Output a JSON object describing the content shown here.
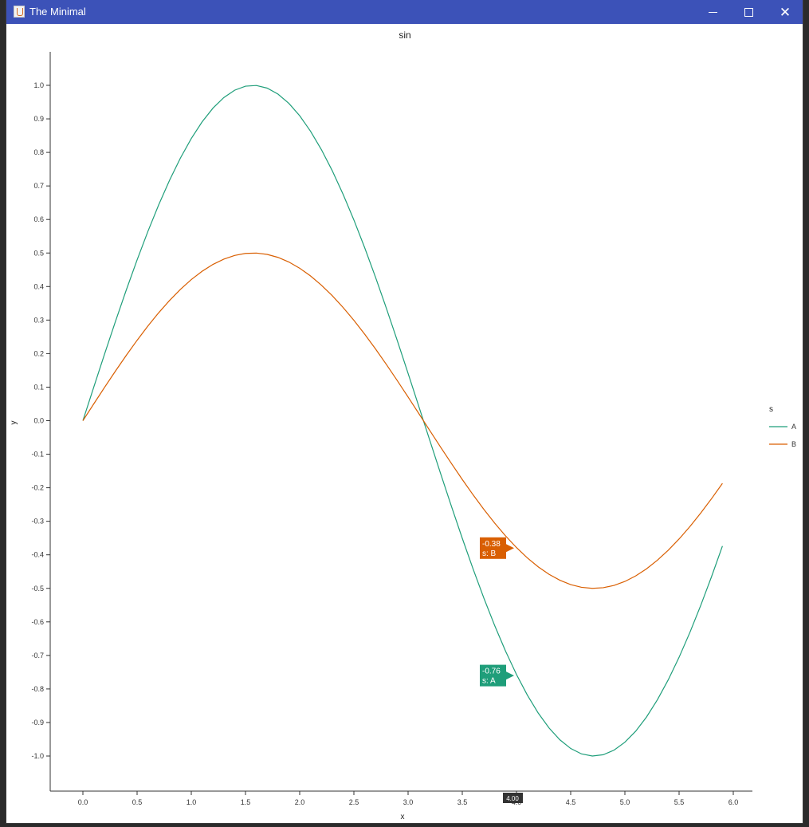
{
  "window": {
    "title": "The Minimal"
  },
  "chart_data": {
    "type": "line",
    "title": "sin",
    "xlabel": "x",
    "ylabel": "y",
    "xlim": [
      -0.3,
      6.2
    ],
    "ylim": [
      -1.1,
      1.1
    ],
    "x_ticks": [
      "0.0",
      "0.5",
      "1.0",
      "1.5",
      "2.0",
      "2.5",
      "3.0",
      "3.5",
      "4.0",
      "4.5",
      "5.0",
      "5.5",
      "6.0"
    ],
    "y_ticks": [
      "1.0",
      "0.9",
      "0.8",
      "0.7",
      "0.6",
      "0.5",
      "0.4",
      "0.3",
      "0.2",
      "0.1",
      "0.0",
      "-0.1",
      "-0.2",
      "-0.3",
      "-0.4",
      "-0.5",
      "-0.6",
      "-0.7",
      "-0.8",
      "-0.9",
      "-1.0"
    ],
    "x_start": 0.0,
    "x_end": 5.9,
    "x_step": 0.1,
    "series": [
      {
        "name": "A",
        "color": "#1f9e7a",
        "amplitude": 1.0
      },
      {
        "name": "B",
        "color": "#d95f02",
        "amplitude": 0.5
      }
    ],
    "legend": {
      "title": "s",
      "placement": "right"
    },
    "grid": false,
    "tooltips": [
      {
        "x": 4.0,
        "y": -0.38,
        "value": "-0.38",
        "label": "s: B",
        "color": "#d95f02"
      },
      {
        "x": 4.0,
        "y": -0.76,
        "value": "-0.76",
        "label": "s: A",
        "color": "#1f9e7a"
      }
    ],
    "crosshair_x_label": "4.00"
  },
  "colors": {
    "titlebar": "#3c52b8",
    "series_a": "#1f9e7a",
    "series_b": "#d95f02"
  },
  "icons": {
    "app": "java-icon",
    "minimize": "minimize-icon",
    "maximize": "maximize-icon",
    "close": "close-icon"
  }
}
